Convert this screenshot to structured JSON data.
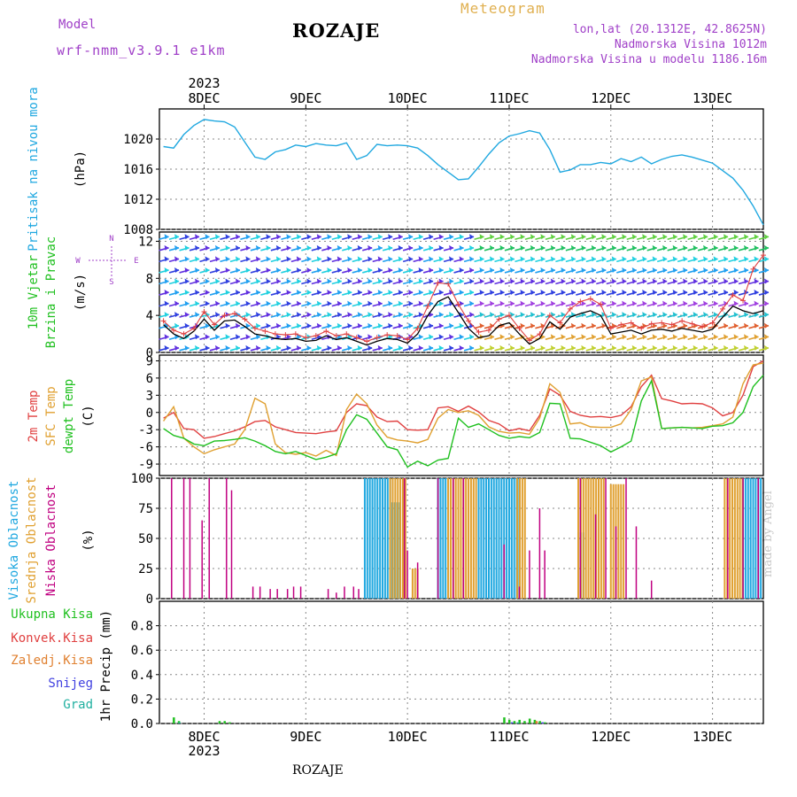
{
  "header": {
    "model_label": "Model",
    "model_value": "wrf-nmm_v3.9.1 e1km",
    "station": "ROZAJE",
    "meteogram": "Meteogram",
    "lonlat": "lon,lat (20.1312E, 42.8625N)",
    "altitude": "Nadmorska Visina 1012m",
    "model_altitude": "Nadmorska Visina u modelu 1186.16m"
  },
  "footer": {
    "station": "ROZAJE",
    "watermark": "made by Angel"
  },
  "time_axis": {
    "year": "2023",
    "days": [
      "8DEC",
      "9DEC",
      "10DEC",
      "11DEC",
      "12DEC",
      "13DEC"
    ]
  },
  "chart_data": [
    {
      "type": "line",
      "ylabel": [
        "Pritisak na nivou mora",
        "(hPa)"
      ],
      "ylim": [
        1008,
        1024
      ],
      "yticks": [
        1008,
        1012,
        1016,
        1020
      ],
      "color": "#20a8e0",
      "x": [
        7.6,
        7.7,
        7.8,
        7.9,
        8.0,
        8.1,
        8.2,
        8.3,
        8.4,
        8.5,
        8.6,
        8.7,
        8.8,
        8.9,
        9.0,
        9.1,
        9.2,
        9.3,
        9.4,
        9.5,
        9.6,
        9.7,
        9.8,
        9.9,
        10.0,
        10.1,
        10.2,
        10.3,
        10.4,
        10.5,
        10.6,
        10.7,
        10.8,
        10.9,
        11.0,
        11.1,
        11.2,
        11.3,
        11.4,
        11.5,
        11.6,
        11.7,
        11.8,
        11.9,
        12.0,
        12.1,
        12.2,
        12.3,
        12.4,
        12.5,
        12.6,
        12.7,
        12.8,
        12.9,
        13.0,
        13.1,
        13.2,
        13.3,
        13.4,
        13.5
      ],
      "values": [
        1019,
        1018.8,
        1020.6,
        1021.8,
        1022.6,
        1022.4,
        1022.3,
        1021.6,
        1019.6,
        1017.6,
        1017.3,
        1018.3,
        1018.6,
        1019.2,
        1019.0,
        1019.4,
        1019.2,
        1019.1,
        1019.5,
        1017.3,
        1017.8,
        1019.3,
        1019.1,
        1019.2,
        1019.1,
        1018.8,
        1017.8,
        1016.6,
        1015.6,
        1014.6,
        1014.7,
        1016.3,
        1018.0,
        1019.5,
        1020.4,
        1020.7,
        1021.1,
        1020.8,
        1018.6,
        1015.6,
        1015.9,
        1016.6,
        1016.6,
        1016.9,
        1016.7,
        1017.4,
        1017.0,
        1017.6,
        1016.7,
        1017.3,
        1017.7,
        1017.9,
        1017.6,
        1017.2,
        1016.8,
        1015.8,
        1014.8,
        1013.2,
        1011.1,
        1008.6
      ]
    },
    {
      "type": "line",
      "ylabel": [
        "10m Vjetar",
        "Brzina i Pravac",
        "(m/s)"
      ],
      "compass": [
        "N",
        "S",
        "W",
        "E"
      ],
      "ylim": [
        0,
        13
      ],
      "yticks": [
        0,
        4,
        8,
        12
      ],
      "series": [
        {
          "values": [
            3,
            2,
            1.5,
            2.3,
            3.6,
            2.4,
            3.4,
            3.5,
            2.8,
            2.0,
            1.8,
            1.5,
            1.4,
            1.5,
            1.2,
            1.3,
            1.8,
            1.4,
            1.6,
            1.2,
            0.8,
            1.2,
            1.5,
            1.4,
            1.0,
            2.0,
            4.0,
            5.5,
            6.0,
            4.3,
            2.6,
            1.6,
            1.8,
            2.9,
            3.2,
            2.0,
            0.9,
            1.5,
            3.3,
            2.5,
            3.8,
            4.2,
            4.5,
            4.0,
            2.0,
            2.2,
            2.4,
            2.0,
            2.4,
            2.5,
            2.3,
            2.6,
            2.4,
            2.2,
            2.5,
            3.8,
            5.0,
            4.5,
            4.2,
            4.5
          ],
          "color": "#000000"
        },
        {
          "values": [
            3.4,
            2.4,
            2.0,
            2.6,
            4.4,
            3.0,
            4.0,
            4.2,
            3.6,
            2.6,
            2.3,
            2.0,
            1.9,
            2.0,
            1.6,
            1.8,
            2.3,
            1.8,
            2.0,
            1.6,
            1.2,
            1.6,
            1.9,
            1.8,
            1.4,
            2.6,
            5.0,
            7.5,
            7.4,
            5.2,
            3.4,
            2.2,
            2.4,
            3.6,
            4.0,
            2.6,
            1.3,
            2.0,
            4.0,
            3.2,
            4.7,
            5.5,
            5.8,
            5.2,
            2.6,
            3.0,
            3.2,
            2.6,
            3.1,
            3.2,
            3.0,
            3.4,
            3.1,
            2.8,
            3.2,
            4.7,
            6.2,
            5.6,
            9.0,
            10.5
          ],
          "color": "#e04040"
        }
      ],
      "arrow_levels": [
        0,
        1.2,
        2.4,
        3.6,
        4.8,
        6.0,
        7.2,
        8.4,
        9.6,
        10.8,
        12.0
      ]
    },
    {
      "type": "line",
      "ylabel": [
        "2m Temp",
        "SFC Temp",
        "dewpt Temp",
        "(C)"
      ],
      "ylim": [
        -11,
        10
      ],
      "yticks": [
        -9,
        -6,
        -3,
        0,
        3,
        6,
        9
      ],
      "series": [
        {
          "name": "2m Temp",
          "color": "#e04040",
          "values": [
            -1,
            0,
            -2.8,
            -3,
            -4.5,
            -4.2,
            -3.7,
            -3.2,
            -2.5,
            -1.6,
            -1.4,
            -2.5,
            -3.0,
            -3.5,
            -3.6,
            -3.7,
            -3.4,
            -3.2,
            0.0,
            1.5,
            1.2,
            -0.8,
            -1.6,
            -1.5,
            -3.0,
            -3.1,
            -3.0,
            0.8,
            1.0,
            0.2,
            1.1,
            0.1,
            -1.4,
            -2.0,
            -3.2,
            -2.8,
            -3.2,
            -0.5,
            4.1,
            3.0,
            0.2,
            -0.5,
            -0.8,
            -0.7,
            -0.9,
            -0.5,
            1.0,
            4.5,
            6.5,
            2.4,
            2.0,
            1.5,
            1.6,
            1.5,
            0.8,
            -0.6,
            0.0,
            3.0,
            8.0,
            9.0
          ]
        },
        {
          "name": "SFC Temp",
          "color": "#e0a030",
          "values": [
            -1.5,
            1.0,
            -4.5,
            -6,
            -7.2,
            -6.5,
            -6,
            -5.5,
            -3.0,
            2.5,
            1.5,
            -5.5,
            -7.0,
            -7.3,
            -7.0,
            -7.6,
            -6.6,
            -7.5,
            0.5,
            3.2,
            1.5,
            -2.2,
            -4.3,
            -4.8,
            -5.0,
            -5.3,
            -4.7,
            -1.0,
            0.5,
            0.0,
            0.3,
            -0.5,
            -2.5,
            -3.3,
            -3.6,
            -3.5,
            -3.8,
            -1.0,
            5.0,
            3.5,
            -2.0,
            -1.8,
            -2.5,
            -2.6,
            -2.6,
            -2.0,
            0.5,
            5.5,
            6.2,
            -2.8,
            -2.7,
            -2.6,
            -2.7,
            -2.6,
            -2.3,
            -2.0,
            -0.8,
            5.0,
            8.3,
            8.6
          ]
        },
        {
          "name": "dewpt Temp",
          "color": "#20c020",
          "values": [
            -2.8,
            -4.0,
            -4.5,
            -5.5,
            -5.8,
            -5.0,
            -4.9,
            -4.7,
            -4.4,
            -5.0,
            -5.8,
            -6.8,
            -7.2,
            -6.8,
            -7.5,
            -8.2,
            -7.8,
            -7.2,
            -3.0,
            -0.4,
            -1.2,
            -3.6,
            -6.0,
            -6.5,
            -9.5,
            -8.5,
            -9.3,
            -8.3,
            -8.0,
            -1.0,
            -2.6,
            -2.0,
            -3.0,
            -4.0,
            -4.5,
            -4.2,
            -4.4,
            -3.5,
            1.6,
            1.5,
            -4.5,
            -4.6,
            -5.2,
            -5.8,
            -6.9,
            -6.0,
            -5.0,
            2.0,
            5.5,
            -2.8,
            -2.7,
            -2.6,
            -2.7,
            -2.8,
            -2.4,
            -2.3,
            -1.8,
            0.0,
            4.5,
            6.5
          ]
        }
      ]
    },
    {
      "type": "bar",
      "ylabel": [
        "Visoka Oblacnost",
        "Srednja Oblacnost",
        "Niska Oblacnost",
        "(%)"
      ],
      "ylim": [
        0,
        100
      ],
      "yticks": [
        0,
        25,
        50,
        75,
        100
      ],
      "series": [
        {
          "name": "Visoka Oblacnost",
          "color": "#20a8e0",
          "blocks": [
            [
              9.58,
              9.84,
              100
            ],
            [
              9.85,
              9.95,
              80
            ],
            [
              10.3,
              10.4,
              100
            ],
            [
              10.7,
              11.12,
              100
            ],
            [
              11.68,
              11.75,
              55
            ],
            [
              13.3,
              13.48,
              100
            ]
          ]
        },
        {
          "name": "Srednja Oblacnost",
          "color": "#e0a030",
          "blocks": [
            [
              9.83,
              10.0,
              100
            ],
            [
              10.05,
              10.12,
              25
            ],
            [
              10.4,
              10.7,
              100
            ],
            [
              11.08,
              11.18,
              100
            ],
            [
              11.68,
              11.95,
              100
            ],
            [
              12.0,
              12.15,
              95
            ],
            [
              13.12,
              13.3,
              100
            ]
          ]
        },
        {
          "name": "Niska Oblacnost",
          "color": "#c00080",
          "bars": [
            [
              7.68,
              100
            ],
            [
              7.8,
              100
            ],
            [
              7.86,
              100
            ],
            [
              7.98,
              65
            ],
            [
              8.05,
              100
            ],
            [
              8.22,
              100
            ],
            [
              8.27,
              90
            ],
            [
              8.48,
              10
            ],
            [
              8.55,
              10
            ],
            [
              8.65,
              8
            ],
            [
              8.72,
              8
            ],
            [
              8.82,
              8
            ],
            [
              8.88,
              10
            ],
            [
              8.95,
              10
            ],
            [
              9.22,
              8
            ],
            [
              9.3,
              5
            ],
            [
              9.38,
              10
            ],
            [
              9.47,
              10
            ],
            [
              9.52,
              8
            ],
            [
              9.97,
              100
            ],
            [
              10.0,
              40
            ],
            [
              10.1,
              30
            ],
            [
              10.3,
              100
            ],
            [
              10.45,
              100
            ],
            [
              10.55,
              100
            ],
            [
              10.95,
              45
            ],
            [
              11.1,
              10
            ],
            [
              11.2,
              40
            ],
            [
              11.3,
              75
            ],
            [
              11.35,
              40
            ],
            [
              11.7,
              100
            ],
            [
              11.85,
              70
            ],
            [
              11.95,
              100
            ],
            [
              12.05,
              60
            ],
            [
              12.15,
              100
            ],
            [
              12.25,
              60
            ],
            [
              12.4,
              15
            ],
            [
              13.15,
              100
            ],
            [
              13.3,
              100
            ],
            [
              13.45,
              100
            ]
          ]
        }
      ]
    },
    {
      "type": "bar",
      "ylabel": [
        "Ukupna Kisa",
        "Konvek.Kisa",
        "Zaledj.Kisa",
        "Snijeg",
        "Grad",
        "1hr Precip (mm)"
      ],
      "ylim": [
        0,
        1
      ],
      "yticks": [
        0,
        0.2,
        0.4,
        0.6,
        0.8
      ],
      "series": [
        {
          "name": "Ukupna Kisa",
          "color": "#20c020",
          "bars": [
            [
              7.7,
              0.05
            ],
            [
              7.75,
              0.02
            ],
            [
              8.15,
              0.02
            ],
            [
              8.2,
              0.02
            ],
            [
              8.25,
              0.01
            ],
            [
              10.95,
              0.05
            ],
            [
              11.0,
              0.03
            ],
            [
              11.05,
              0.02
            ],
            [
              11.1,
              0.03
            ],
            [
              11.15,
              0.02
            ],
            [
              11.2,
              0.04
            ],
            [
              11.25,
              0.03
            ],
            [
              11.3,
              0.02
            ],
            [
              11.35,
              0.01
            ]
          ]
        },
        {
          "name": "Konvek.Kisa",
          "color": "#e04040",
          "bars": []
        },
        {
          "name": "Zaledj.Kisa",
          "color": "#e08030",
          "bars": [
            [
              11.25,
              0.02
            ]
          ]
        },
        {
          "name": "Snijeg",
          "color": "#4040e0",
          "bars": [
            [
              11.0,
              0.01
            ],
            [
              11.3,
              0.01
            ]
          ]
        },
        {
          "name": "Grad",
          "color": "#20b0a0",
          "bars": [
            [
              7.72,
              0.01
            ],
            [
              11.05,
              0.01
            ]
          ]
        }
      ]
    }
  ]
}
